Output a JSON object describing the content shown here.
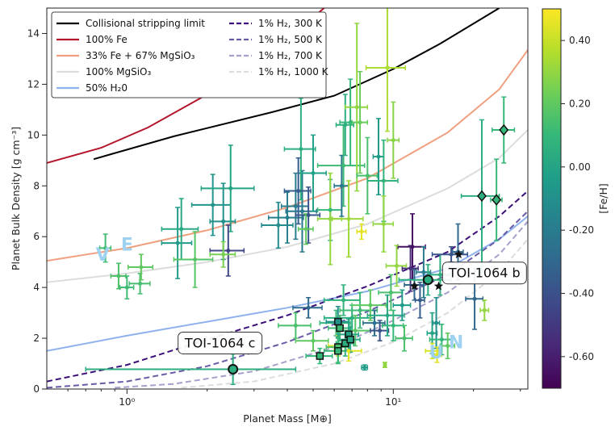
{
  "chart_data": {
    "type": "scatter",
    "xlabel": "Planet Mass [M⊕]",
    "ylabel": "Planet Bulk Density [g cm⁻³]",
    "xscale": "log",
    "xlim": [
      0.5,
      32
    ],
    "ylim": [
      0,
      15
    ],
    "x_ticks": [
      {
        "v": 1,
        "label": "10⁰"
      },
      {
        "v": 10,
        "label": "10¹"
      }
    ],
    "y_ticks": [
      0,
      2,
      4,
      6,
      8,
      10,
      12,
      14
    ],
    "colorbar": {
      "label": "[Fe/H]",
      "range": [
        -0.7,
        0.5
      ],
      "ticks": [
        0.4,
        0.2,
        0.0,
        -0.2,
        -0.4,
        -0.6
      ],
      "tick_labels": [
        "0.40",
        "0.20",
        "0.00",
        "-0.20",
        "-0.40",
        "-0.60"
      ],
      "colors": [
        "#440154",
        "#482878",
        "#3e4989",
        "#31688e",
        "#26828e",
        "#1f9e89",
        "#35b779",
        "#6ece58",
        "#b5de2b",
        "#fde725"
      ]
    },
    "legend": {
      "position": "top-left",
      "items": [
        {
          "label": "Collisional stripping limit",
          "color": "#000000",
          "dash": false
        },
        {
          "label": "100% Fe",
          "color": "#b5162b",
          "dash": false
        },
        {
          "label": "33% Fe + 67% MgSiO₃",
          "color": "#f0a080",
          "dash": false
        },
        {
          "label": "100% MgSiO₃",
          "color": "#dcdcdc",
          "dash": false
        },
        {
          "label": "50% H₂0",
          "color": "#8fb2ee",
          "dash": false
        },
        {
          "label": "1% H₂, 300 K",
          "color": "#3b1078",
          "dash": true
        },
        {
          "label": "1% H₂, 500 K",
          "color": "#6a5aa8",
          "dash": true
        },
        {
          "label": "1% H₂, 700 K",
          "color": "#a8a0cc",
          "dash": true
        },
        {
          "label": "1% H₂, 1000 K",
          "color": "#dcdcdc",
          "dash": true
        }
      ]
    },
    "model_curves": [
      {
        "name": "Collisional stripping limit",
        "color": "#000000",
        "dash": false,
        "points": [
          [
            0.75,
            9.05
          ],
          [
            1.5,
            9.95
          ],
          [
            3.5,
            10.9
          ],
          [
            6,
            11.55
          ],
          [
            10,
            12.6
          ],
          [
            15,
            13.6
          ],
          [
            25,
            15
          ]
        ]
      },
      {
        "name": "100% Fe",
        "color": "#b5162b",
        "dash": false,
        "points": [
          [
            0.5,
            8.9
          ],
          [
            0.8,
            9.5
          ],
          [
            1.2,
            10.3
          ],
          [
            2,
            11.6
          ],
          [
            3.5,
            13.3
          ],
          [
            5.5,
            15
          ]
        ]
      },
      {
        "name": "33% Fe + 67% MgSiO₃",
        "color": "#f0a080",
        "dash": false,
        "points": [
          [
            0.5,
            5.05
          ],
          [
            1,
            5.55
          ],
          [
            2,
            6.25
          ],
          [
            4,
            7.15
          ],
          [
            8,
            8.3
          ],
          [
            16,
            10.1
          ],
          [
            25,
            11.8
          ],
          [
            32,
            13.35
          ]
        ]
      },
      {
        "name": "100% MgSiO₃",
        "color": "#dcdcdc",
        "dash": false,
        "points": [
          [
            0.5,
            4.2
          ],
          [
            1,
            4.55
          ],
          [
            2,
            5.0
          ],
          [
            4,
            5.6
          ],
          [
            8,
            6.5
          ],
          [
            16,
            7.9
          ],
          [
            25,
            9.1
          ],
          [
            32,
            10.2
          ]
        ]
      },
      {
        "name": "50% H₂0",
        "color": "#8fb2ee",
        "dash": false,
        "points": [
          [
            0.5,
            1.5
          ],
          [
            1,
            2.1
          ],
          [
            2,
            2.65
          ],
          [
            4,
            3.2
          ],
          [
            8,
            3.85
          ],
          [
            16,
            4.75
          ],
          [
            25,
            5.9
          ],
          [
            32,
            6.8
          ]
        ]
      },
      {
        "name": "1% H₂, 300 K",
        "color": "#3b1078",
        "dash": true,
        "points": [
          [
            0.5,
            0.3
          ],
          [
            1,
            0.95
          ],
          [
            2,
            1.95
          ],
          [
            4,
            2.9
          ],
          [
            8,
            4.05
          ],
          [
            16,
            5.4
          ],
          [
            25,
            6.8
          ],
          [
            32,
            7.8
          ]
        ]
      },
      {
        "name": "1% H₂, 500 K",
        "color": "#6a5aa8",
        "dash": true,
        "points": [
          [
            0.5,
            0.05
          ],
          [
            1,
            0.3
          ],
          [
            2,
            0.9
          ],
          [
            4,
            1.85
          ],
          [
            8,
            3.05
          ],
          [
            16,
            4.5
          ],
          [
            25,
            5.9
          ],
          [
            32,
            7.0
          ]
        ]
      },
      {
        "name": "1% H₂, 700 K",
        "color": "#a8a0cc",
        "dash": true,
        "points": [
          [
            0.9,
            0.05
          ],
          [
            1.5,
            0.2
          ],
          [
            3,
            0.7
          ],
          [
            6,
            1.65
          ],
          [
            10,
            2.7
          ],
          [
            16,
            3.8
          ],
          [
            25,
            5.3
          ],
          [
            32,
            6.6
          ]
        ]
      },
      {
        "name": "1% H₂, 1000 K",
        "color": "#dcdcdc",
        "dash": true,
        "points": [
          [
            1.6,
            0.05
          ],
          [
            3,
            0.3
          ],
          [
            6,
            1.0
          ],
          [
            10,
            1.85
          ],
          [
            16,
            3.0
          ],
          [
            25,
            4.6
          ],
          [
            32,
            5.9
          ]
        ]
      }
    ],
    "points": [
      {
        "x": 0.83,
        "y": 5.55,
        "xe": 0.04,
        "ye": 0.55,
        "feh": 0.13
      },
      {
        "x": 0.93,
        "y": 4.45,
        "xe": 0.06,
        "ye": 0.5,
        "feh": 0.16
      },
      {
        "x": 1.0,
        "y": 4.0,
        "xe": 0.06,
        "ye": 0.45,
        "feh": 0.12
      },
      {
        "x": 1.12,
        "y": 4.15,
        "xe": 0.1,
        "ye": 0.4,
        "feh": 0.14
      },
      {
        "x": 1.13,
        "y": 4.8,
        "xe": 0.12,
        "ye": 0.5,
        "feh": 0.2
      },
      {
        "x": 1.55,
        "y": 5.75,
        "xe": 0.2,
        "ye": 1.4,
        "feh": -0.05
      },
      {
        "x": 1.6,
        "y": 6.3,
        "xe": 0.25,
        "ye": 1.2,
        "feh": 0.02
      },
      {
        "x": 1.8,
        "y": 5.1,
        "xe": 0.3,
        "ye": 1.1,
        "feh": 0.18
      },
      {
        "x": 2.1,
        "y": 7.25,
        "xe": 0.35,
        "ye": 1.2,
        "feh": -0.08
      },
      {
        "x": 2.3,
        "y": 6.6,
        "xe": 0.25,
        "ye": 1.5,
        "feh": -0.1
      },
      {
        "x": 2.45,
        "y": 7.9,
        "xe": 0.55,
        "ye": 1.7,
        "feh": 0.0
      },
      {
        "x": 2.4,
        "y": 5.45,
        "xe": 0.35,
        "ye": 1.0,
        "feh": -0.45
      },
      {
        "x": 2.3,
        "y": 5.3,
        "xe": 0.25,
        "ye": 0.5,
        "feh": 0.25
      },
      {
        "x": 3.7,
        "y": 6.45,
        "xe": 0.5,
        "ye": 0.9,
        "feh": -0.12
      },
      {
        "x": 4.0,
        "y": 6.75,
        "xe": 0.6,
        "ye": 1.0,
        "feh": -0.18
      },
      {
        "x": 4.3,
        "y": 7.2,
        "xe": 0.5,
        "ye": 1.3,
        "feh": -0.2
      },
      {
        "x": 4.55,
        "y": 7.0,
        "xe": 0.6,
        "ye": 1.6,
        "feh": -0.22
      },
      {
        "x": 4.8,
        "y": 6.85,
        "xe": 0.5,
        "ye": 1.1,
        "feh": -0.38
      },
      {
        "x": 4.5,
        "y": 9.45,
        "xe": 0.6,
        "ye": 2.0,
        "feh": 0.05
      },
      {
        "x": 5.0,
        "y": 8.5,
        "xe": 0.6,
        "ye": 1.5,
        "feh": -0.02
      },
      {
        "x": 4.4,
        "y": 7.8,
        "xe": 0.5,
        "ye": 1.3,
        "feh": -0.35
      },
      {
        "x": 4.7,
        "y": 6.3,
        "xe": 0.3,
        "ye": 0.6,
        "feh": 0.2
      },
      {
        "x": 5.8,
        "y": 7.05,
        "xe": 0.6,
        "ye": 1.2,
        "feh": 0.1
      },
      {
        "x": 5.8,
        "y": 6.7,
        "xe": 0.6,
        "ye": 1.8,
        "feh": 0.3
      },
      {
        "x": 6.5,
        "y": 8.8,
        "xe": 1.3,
        "ye": 1.6,
        "feh": 0.12
      },
      {
        "x": 6.4,
        "y": 8.0,
        "xe": 0.4,
        "ye": 1.2,
        "feh": -0.22
      },
      {
        "x": 6.6,
        "y": 10.4,
        "xe": 0.5,
        "ye": 1.2,
        "feh": 0.05
      },
      {
        "x": 6.9,
        "y": 10.5,
        "xe": 0.6,
        "ye": 1.7,
        "feh": 0.1
      },
      {
        "x": 7.3,
        "y": 11.1,
        "xe": 0.7,
        "ye": 3.3,
        "feh": 0.3
      },
      {
        "x": 7.5,
        "y": 10.5,
        "xe": 0.5,
        "ye": 2.0,
        "feh": 0.22
      },
      {
        "x": 6.8,
        "y": 6.7,
        "xe": 0.9,
        "ye": 1.5,
        "feh": 0.32
      },
      {
        "x": 7.6,
        "y": 6.2,
        "xe": 0.3,
        "ye": 0.3,
        "feh": 0.45
      },
      {
        "x": 8.0,
        "y": 8.4,
        "xe": 0.7,
        "ye": 1.5,
        "feh": 0.15
      },
      {
        "x": 8.8,
        "y": 9.15,
        "xe": 0.4,
        "ye": 1.5,
        "feh": -0.05
      },
      {
        "x": 9.2,
        "y": 8.2,
        "xe": 1.2,
        "ye": 1.6,
        "feh": 0.08
      },
      {
        "x": 9.5,
        "y": 12.65,
        "xe": 1.6,
        "ye": 2.5,
        "feh": 0.35
      },
      {
        "x": 10.0,
        "y": 9.8,
        "xe": 0.5,
        "ye": 1.5,
        "feh": 0.28
      },
      {
        "x": 9.2,
        "y": 6.5,
        "xe": 0.8,
        "ye": 1.1,
        "feh": 0.3
      },
      {
        "x": 11.8,
        "y": 5.6,
        "xe": 1.4,
        "ye": 1.3,
        "feh": -0.65
      },
      {
        "x": 11.6,
        "y": 4.75,
        "xe": 0.8,
        "ye": 0.9,
        "feh": -0.55
      },
      {
        "x": 12.0,
        "y": 4.1,
        "xe": 1.0,
        "ye": 0.6,
        "feh": -0.3
      },
      {
        "x": 12.6,
        "y": 3.5,
        "xe": 0.5,
        "ye": 0.7,
        "feh": -0.35
      },
      {
        "x": 13.0,
        "y": 4.6,
        "xe": 0.8,
        "ye": 1.0,
        "feh": -0.2
      },
      {
        "x": 14.0,
        "y": 2.2,
        "xe": 0.6,
        "ye": 0.8,
        "feh": 0.0
      },
      {
        "x": 14.5,
        "y": 2.6,
        "xe": 0.4,
        "ye": 1.0,
        "feh": -0.1
      },
      {
        "x": 15.0,
        "y": 4.5,
        "xe": 1.3,
        "ye": 0.8,
        "feh": 0.05
      },
      {
        "x": 16.5,
        "y": 5.3,
        "xe": 2.5,
        "ye": 0.3,
        "feh": -0.38
      },
      {
        "x": 17.5,
        "y": 5.4,
        "xe": 0.8,
        "ye": 1.1,
        "feh": -0.3
      },
      {
        "x": 20.2,
        "y": 3.55,
        "xe": 1.5,
        "ye": 1.2,
        "feh": -0.3
      },
      {
        "x": 22.0,
        "y": 3.1,
        "xe": 0.8,
        "ye": 0.4,
        "feh": 0.3
      },
      {
        "x": 4.8,
        "y": 3.2,
        "xe": 0.6,
        "ye": 0.4,
        "feh": -0.3
      },
      {
        "x": 4.3,
        "y": 2.5,
        "xe": 0.6,
        "ye": 0.5,
        "feh": 0.15
      },
      {
        "x": 5.0,
        "y": 1.9,
        "xe": 0.7,
        "ye": 0.4,
        "feh": 0.2
      },
      {
        "x": 6.1,
        "y": 2.6,
        "xe": 0.8,
        "ye": 0.5,
        "feh": 0.1
      },
      {
        "x": 6.5,
        "y": 3.5,
        "xe": 1.0,
        "ye": 0.6,
        "feh": 0.08
      },
      {
        "x": 7.0,
        "y": 2.8,
        "xe": 1.5,
        "ye": 0.5,
        "feh": 0.05
      },
      {
        "x": 7.5,
        "y": 3.1,
        "xe": 1.2,
        "ye": 0.7,
        "feh": 0.12
      },
      {
        "x": 7.2,
        "y": 2.3,
        "xe": 1.0,
        "ye": 0.6,
        "feh": 0.18
      },
      {
        "x": 8.2,
        "y": 3.3,
        "xe": 1.2,
        "ye": 0.6,
        "feh": 0.2
      },
      {
        "x": 8.5,
        "y": 2.6,
        "xe": 0.8,
        "ye": 0.5,
        "feh": -0.25
      },
      {
        "x": 8.9,
        "y": 2.3,
        "xe": 0.7,
        "ye": 0.4,
        "feh": -0.4
      },
      {
        "x": 9.5,
        "y": 2.9,
        "xe": 1.5,
        "ye": 0.8,
        "feh": 0.02
      },
      {
        "x": 10.0,
        "y": 2.5,
        "xe": 0.9,
        "ye": 0.6,
        "feh": 0.1
      },
      {
        "x": 9.8,
        "y": 3.8,
        "xe": 1.0,
        "ye": 0.7,
        "feh": 0.15
      },
      {
        "x": 10.8,
        "y": 3.3,
        "xe": 0.8,
        "ye": 0.6,
        "feh": -0.05
      },
      {
        "x": 10.3,
        "y": 4.85,
        "xe": 0.9,
        "ye": 0.8,
        "feh": 0.3
      },
      {
        "x": 6.8,
        "y": 1.5,
        "xe": 0.8,
        "ye": 0.4,
        "feh": 0.45
      },
      {
        "x": 6.2,
        "y": 1.7,
        "xe": 0.5,
        "ye": 0.4,
        "feh": 0.42
      },
      {
        "x": 7.8,
        "y": 0.85,
        "xe": 0.2,
        "ye": 0.1,
        "feh": -0.05
      },
      {
        "x": 9.3,
        "y": 0.95,
        "xe": 0.1,
        "ye": 0.1,
        "feh": 0.3
      },
      {
        "x": 14.0,
        "y": 1.5,
        "xe": 0.8,
        "ye": 0.3,
        "feh": 0.42
      },
      {
        "x": 14.6,
        "y": 1.35,
        "xe": 0.6,
        "ye": 0.3,
        "feh": 0.45
      },
      {
        "x": 15.2,
        "y": 1.95,
        "xe": 1.5,
        "ye": 0.6,
        "feh": 0.1
      },
      {
        "x": 16.0,
        "y": 1.7,
        "xe": 1.0,
        "ye": 0.5,
        "feh": 0.2
      },
      {
        "x": 11.0,
        "y": 2.0,
        "xe": 0.8,
        "ye": 0.5,
        "feh": 0.15
      }
    ],
    "square_points": [
      {
        "x": 5.3,
        "y": 1.3,
        "xe": 0.6,
        "ye": 0.3,
        "feh": 0.1
      },
      {
        "x": 6.2,
        "y": 2.65,
        "xe": 0.6,
        "ye": 0.6,
        "feh": -0.1
      },
      {
        "x": 6.3,
        "y": 2.4,
        "xe": 0.6,
        "ye": 0.5,
        "feh": 0.12
      },
      {
        "x": 6.2,
        "y": 1.65,
        "xe": 0.6,
        "ye": 0.6,
        "feh": 0.16
      },
      {
        "x": 6.2,
        "y": 1.5,
        "xe": 0.7,
        "ye": 0.5,
        "feh": 0.1
      },
      {
        "x": 6.6,
        "y": 1.8,
        "xe": 0.5,
        "ye": 0.5,
        "feh": 0.05
      },
      {
        "x": 6.8,
        "y": 2.15,
        "xe": 0.6,
        "ye": 0.6,
        "feh": 0.0
      },
      {
        "x": 6.9,
        "y": 1.95,
        "xe": 0.6,
        "ye": 0.5,
        "feh": 0.02
      }
    ],
    "diamond_points": [
      {
        "x": 21.5,
        "y": 7.6,
        "xe": 3.5,
        "ye": 3.0,
        "feh": 0.05
      },
      {
        "x": 24.4,
        "y": 7.45,
        "xe": 1.2,
        "ye": 1.6,
        "feh": 0.1
      },
      {
        "x": 26.0,
        "y": 10.2,
        "xe": 2.5,
        "ye": 1.3,
        "feh": 0.1
      }
    ],
    "star_points": [
      {
        "x": 12.0,
        "y": 4.05
      },
      {
        "x": 14.8,
        "y": 4.05
      },
      {
        "x": 17.6,
        "y": 5.3
      }
    ],
    "highlight": [
      {
        "label": "TOI-1064 b",
        "x": 13.5,
        "y": 4.3,
        "xe": 3.0,
        "ye": 0.6,
        "feh": 0.05,
        "label_pos": "right"
      },
      {
        "label": "TOI-1064 c",
        "x": 2.5,
        "y": 0.78,
        "xe": 1.8,
        "ye": 0.6,
        "feh": 0.05,
        "label_pos": "above-left"
      }
    ],
    "planet_letters": [
      {
        "text": "V",
        "x": 0.81,
        "y": 5.05,
        "color": "#9fd1f0"
      },
      {
        "text": "E",
        "x": 1.0,
        "y": 5.45,
        "color": "#9fd1f0"
      },
      {
        "text": "U",
        "x": 14.5,
        "y": 1.2,
        "color": "#9fd1f0"
      },
      {
        "text": "N",
        "x": 17.2,
        "y": 1.6,
        "color": "#9fd1f0"
      }
    ]
  }
}
